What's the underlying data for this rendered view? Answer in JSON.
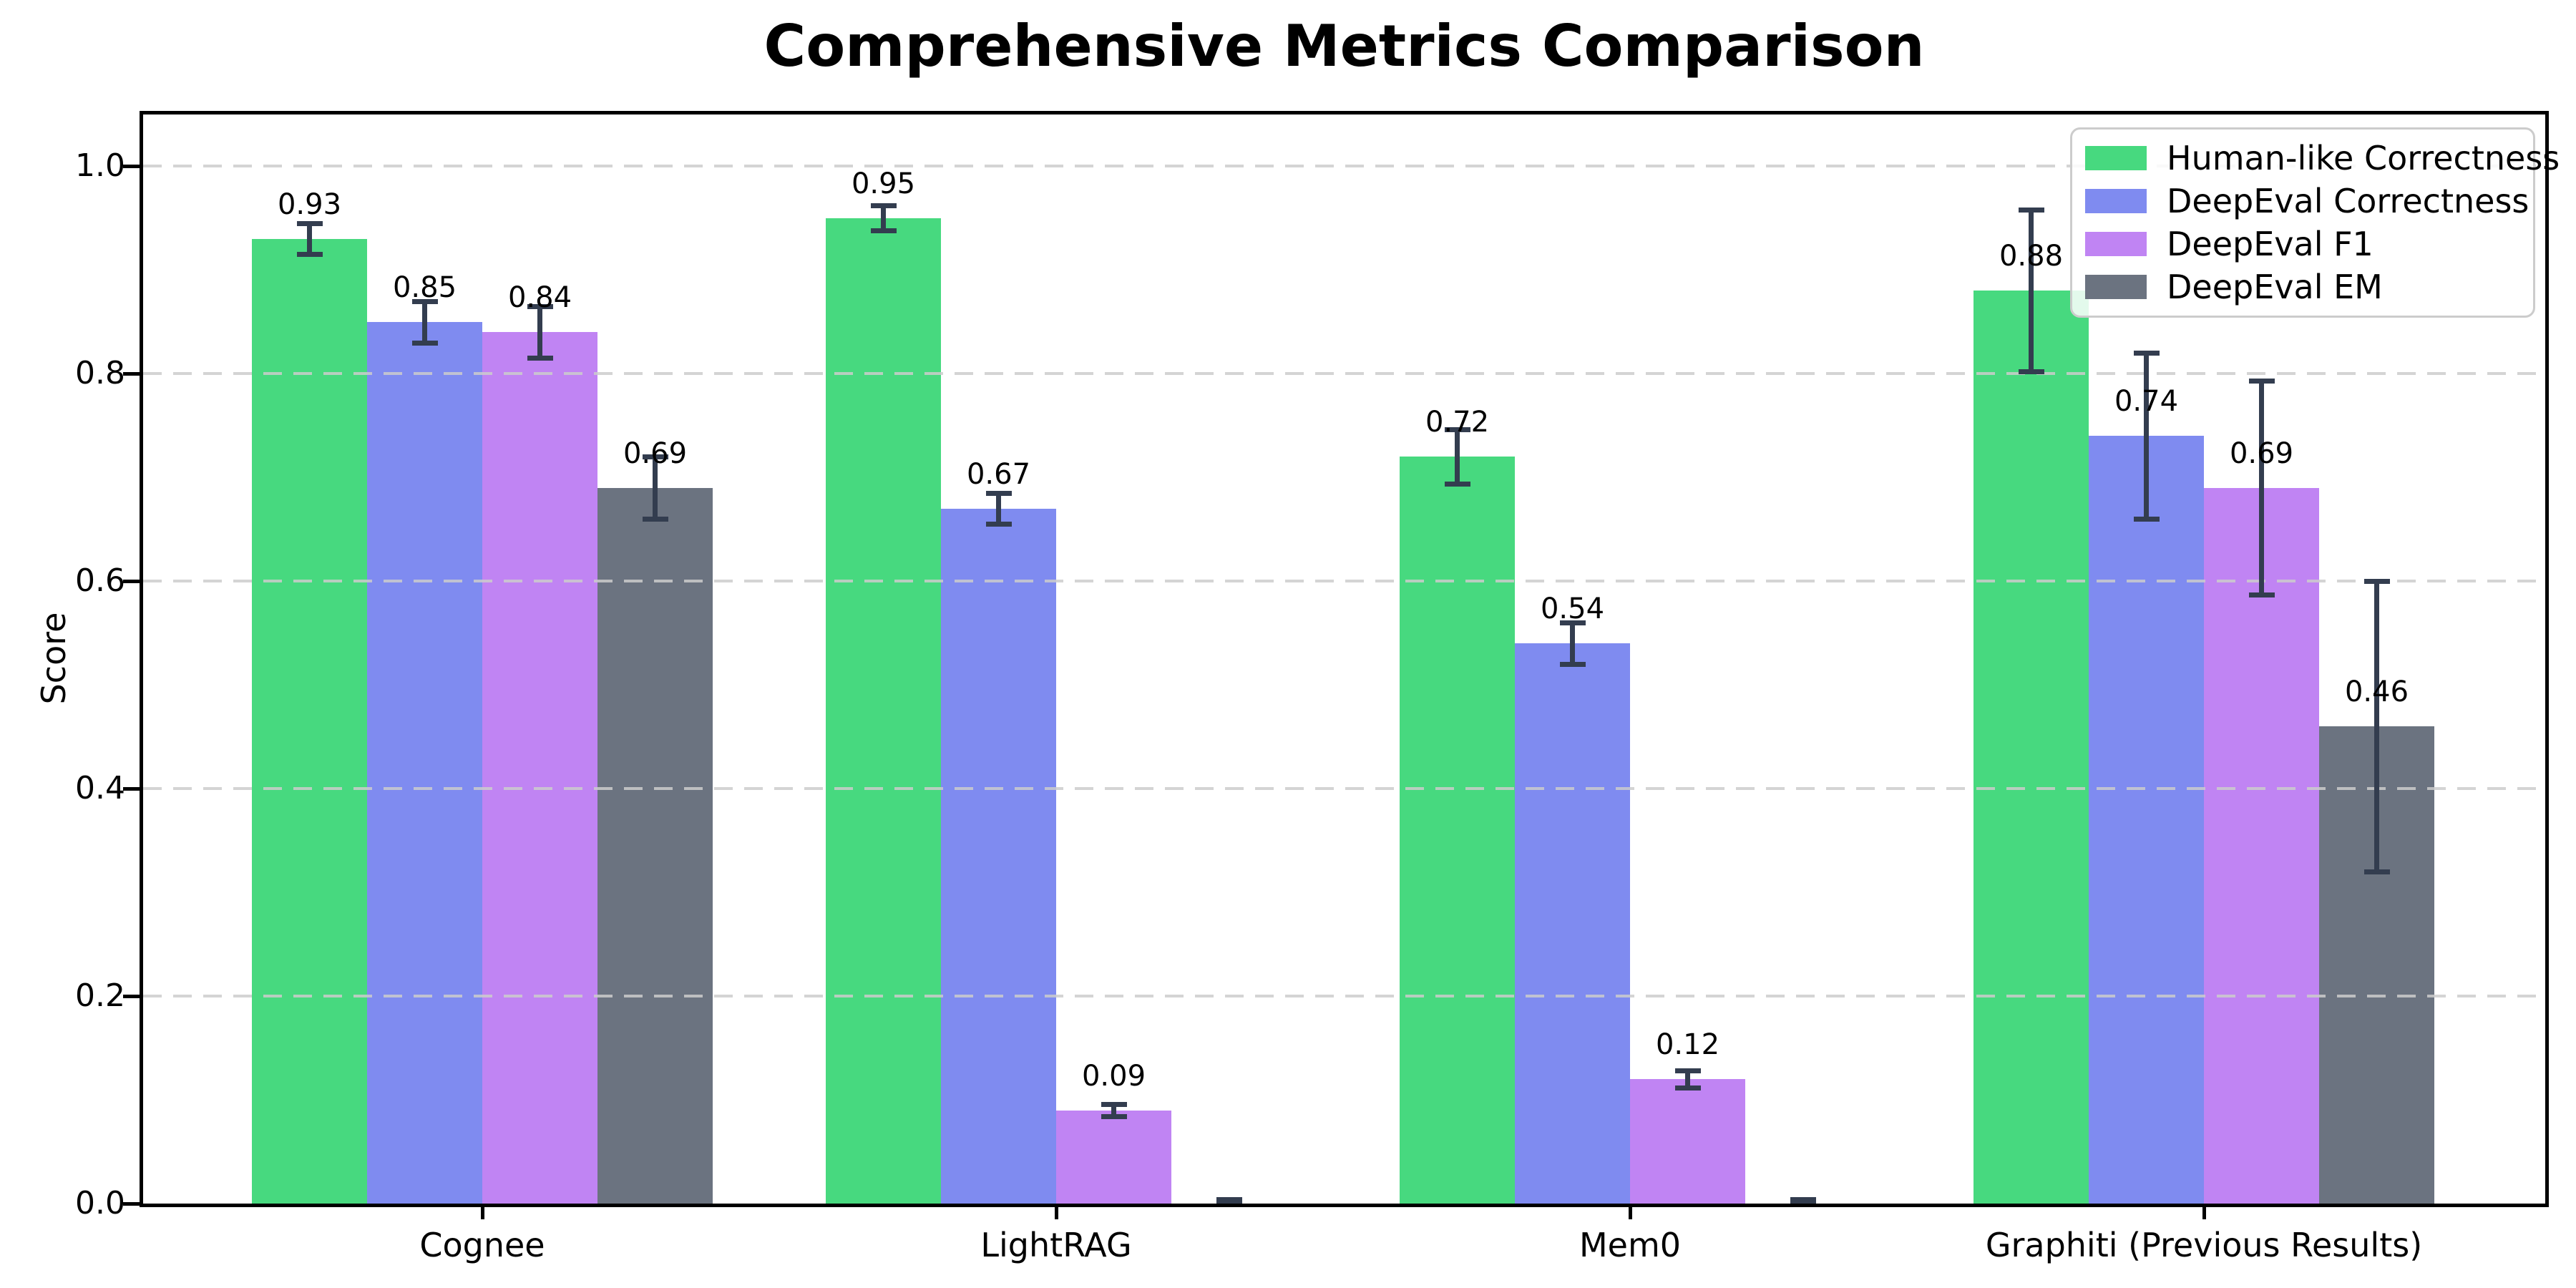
{
  "chart_data": {
    "type": "bar",
    "title": "Comprehensive Metrics Comparison",
    "ylabel": "Score",
    "xlabel": "",
    "categories": [
      "Cognee",
      "LightRAG",
      "Mem0",
      "Graphiti (Previous Results)"
    ],
    "series": [
      {
        "name": "Human-like Correctness",
        "color": "#47d97f",
        "values": [
          0.93,
          0.95,
          0.72,
          0.88
        ],
        "errors": [
          0.015,
          0.012,
          0.026,
          0.078
        ],
        "value_labels": [
          "0.93",
          "0.95",
          "0.72",
          "0.88"
        ]
      },
      {
        "name": "DeepEval Correctness",
        "color": "#7f8bf0",
        "values": [
          0.85,
          0.67,
          0.54,
          0.74
        ],
        "errors": [
          0.02,
          0.015,
          0.02,
          0.08
        ],
        "value_labels": [
          "0.85",
          "0.67",
          "0.54",
          "0.74"
        ]
      },
      {
        "name": "DeepEval F1",
        "color": "#c084f3",
        "values": [
          0.84,
          0.09,
          0.12,
          0.69
        ],
        "errors": [
          0.025,
          0.006,
          0.008,
          0.103
        ],
        "value_labels": [
          "0.84",
          "0.09",
          "0.12",
          "0.69"
        ]
      },
      {
        "name": "DeepEval EM",
        "color": "#6b7380",
        "values": [
          0.69,
          0.0,
          0.0,
          0.46
        ],
        "errors": [
          0.03,
          0.004,
          0.004,
          0.14
        ],
        "value_labels": [
          "0.69",
          "",
          "",
          "0.46"
        ]
      }
    ],
    "y_ticks": [
      0.0,
      0.2,
      0.4,
      0.6,
      0.8,
      1.0
    ],
    "ylim": [
      0,
      1.05
    ],
    "grid": "horizontal-dashed",
    "legend_position": "upper-right",
    "error_bar_color": "#333d4f",
    "grid_color": "#cccccc"
  }
}
